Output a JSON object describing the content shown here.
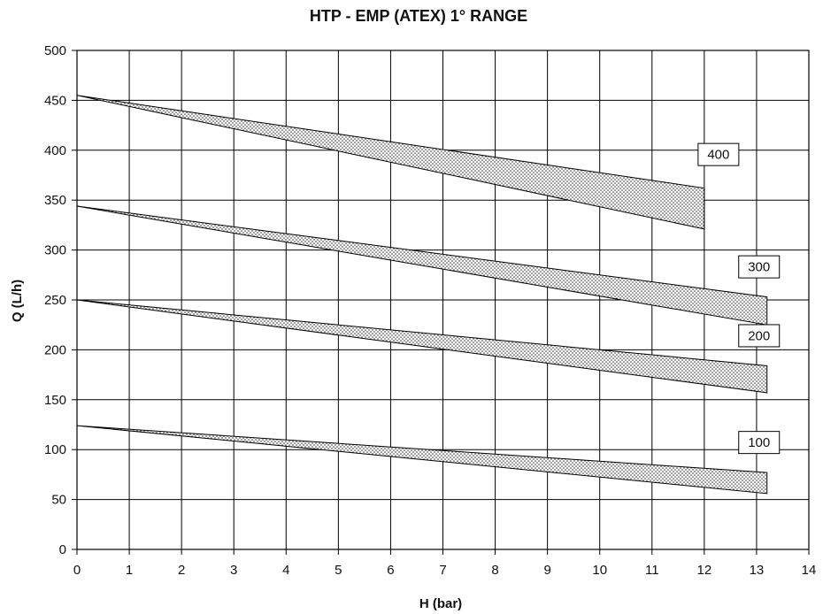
{
  "chart_data": {
    "type": "area",
    "title": "HTP - EMP (ATEX) 1° RANGE",
    "xlabel": "H (bar)",
    "ylabel": "Q (L/h)",
    "xlim": [
      0,
      14
    ],
    "ylim": [
      0,
      500
    ],
    "x_ticks": [
      "0",
      "1",
      "2",
      "3",
      "4",
      "5",
      "6",
      "7",
      "8",
      "9",
      "10",
      "11",
      "12",
      "13",
      "14"
    ],
    "y_ticks": [
      "0",
      "50",
      "100",
      "150",
      "200",
      "250",
      "300",
      "350",
      "400",
      "450",
      "500"
    ],
    "grid": true,
    "pattern": "dotted fill",
    "series": [
      {
        "name": "400",
        "upper": {
          "x": [
            0,
            12
          ],
          "y": [
            455,
            362
          ]
        },
        "lower": {
          "x": [
            0,
            12
          ],
          "y": [
            455,
            321
          ]
        }
      },
      {
        "name": "300",
        "upper": {
          "x": [
            0,
            13.2
          ],
          "y": [
            344,
            253
          ]
        },
        "lower": {
          "x": [
            0,
            13.2
          ],
          "y": [
            344,
            225
          ]
        }
      },
      {
        "name": "200",
        "upper": {
          "x": [
            0,
            13.2
          ],
          "y": [
            250,
            184
          ]
        },
        "lower": {
          "x": [
            0,
            13.2
          ],
          "y": [
            250,
            157
          ]
        }
      },
      {
        "name": "100",
        "upper": {
          "x": [
            0,
            13.2
          ],
          "y": [
            124,
            77
          ]
        },
        "lower": {
          "x": [
            0,
            13.2
          ],
          "y": [
            124,
            56
          ]
        }
      }
    ]
  }
}
